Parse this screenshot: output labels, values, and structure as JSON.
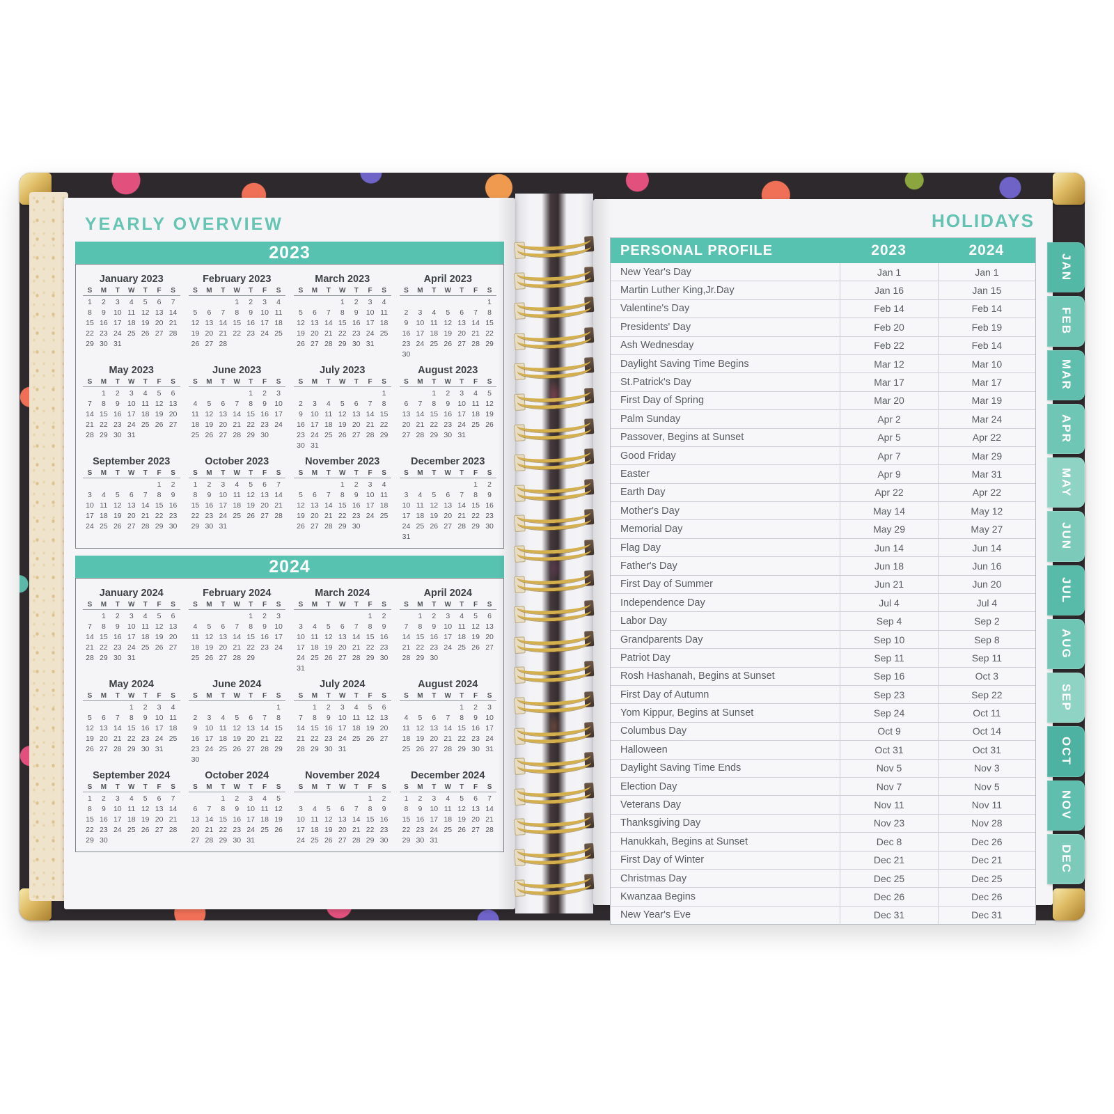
{
  "colors": {
    "teal": "#58C2B0",
    "teal_text": "#65C4B3",
    "gold": "#D4AF4E",
    "cover_dark": "#2E292C",
    "page": "#F5F5F8",
    "text": "#54585C",
    "table_border": "#CCD0D6"
  },
  "left_page": {
    "title": "YEARLY OVERVIEW",
    "weekday_letters": [
      "S",
      "M",
      "T",
      "W",
      "T",
      "F",
      "S"
    ],
    "years": [
      {
        "banner": "2023",
        "months": [
          {
            "label": "January 2023",
            "first_dow": 0,
            "days": 31
          },
          {
            "label": "February 2023",
            "first_dow": 3,
            "days": 28
          },
          {
            "label": "March 2023",
            "first_dow": 3,
            "days": 31
          },
          {
            "label": "April 2023",
            "first_dow": 6,
            "days": 30
          },
          {
            "label": "May 2023",
            "first_dow": 1,
            "days": 31
          },
          {
            "label": "June 2023",
            "first_dow": 4,
            "days": 30
          },
          {
            "label": "July 2023",
            "first_dow": 6,
            "days": 31
          },
          {
            "label": "August 2023",
            "first_dow": 2,
            "days": 31
          },
          {
            "label": "September 2023",
            "first_dow": 5,
            "days": 30
          },
          {
            "label": "October 2023",
            "first_dow": 0,
            "days": 31
          },
          {
            "label": "November 2023",
            "first_dow": 3,
            "days": 30
          },
          {
            "label": "December 2023",
            "first_dow": 5,
            "days": 31
          }
        ]
      },
      {
        "banner": "2024",
        "months": [
          {
            "label": "January 2024",
            "first_dow": 1,
            "days": 31
          },
          {
            "label": "February 2024",
            "first_dow": 4,
            "days": 29
          },
          {
            "label": "March 2024",
            "first_dow": 5,
            "days": 31
          },
          {
            "label": "April 2024",
            "first_dow": 1,
            "days": 30
          },
          {
            "label": "May 2024",
            "first_dow": 3,
            "days": 31
          },
          {
            "label": "June 2024",
            "first_dow": 6,
            "days": 30
          },
          {
            "label": "July 2024",
            "first_dow": 1,
            "days": 31
          },
          {
            "label": "August 2024",
            "first_dow": 4,
            "days": 31
          },
          {
            "label": "September 2024",
            "first_dow": 0,
            "days": 30
          },
          {
            "label": "October 2024",
            "first_dow": 2,
            "days": 31
          },
          {
            "label": "November 2024",
            "first_dow": 5,
            "days": 30
          },
          {
            "label": "December 2024",
            "first_dow": 0,
            "days": 31
          }
        ]
      }
    ]
  },
  "right_page": {
    "title": "HOLIDAYS",
    "table": {
      "header": {
        "name_col": "PERSONAL PROFILE",
        "col_2023": "2023",
        "col_2024": "2024"
      },
      "rows": [
        {
          "name": "New Year's Day",
          "y2023": "Jan 1",
          "y2024": "Jan 1"
        },
        {
          "name": "Martin Luther King,Jr.Day",
          "y2023": "Jan 16",
          "y2024": "Jan 15"
        },
        {
          "name": "Valentine's Day",
          "y2023": "Feb 14",
          "y2024": "Feb 14"
        },
        {
          "name": "Presidents' Day",
          "y2023": "Feb 20",
          "y2024": "Feb 19"
        },
        {
          "name": "Ash Wednesday",
          "y2023": "Feb 22",
          "y2024": "Feb 14"
        },
        {
          "name": "Daylight Saving Time Begins",
          "y2023": "Mar 12",
          "y2024": "Mar 10"
        },
        {
          "name": "St.Patrick's Day",
          "y2023": "Mar 17",
          "y2024": "Mar 17"
        },
        {
          "name": "First Day of Spring",
          "y2023": "Mar 20",
          "y2024": "Mar 19"
        },
        {
          "name": "Palm Sunday",
          "y2023": "Apr 2",
          "y2024": "Mar 24"
        },
        {
          "name": "Passover, Begins at Sunset",
          "y2023": "Apr 5",
          "y2024": "Apr 22"
        },
        {
          "name": "Good Friday",
          "y2023": "Apr 7",
          "y2024": "Mar 29"
        },
        {
          "name": "Easter",
          "y2023": "Apr 9",
          "y2024": "Mar 31"
        },
        {
          "name": "Earth Day",
          "y2023": "Apr 22",
          "y2024": "Apr 22"
        },
        {
          "name": "Mother's Day",
          "y2023": "May 14",
          "y2024": "May 12"
        },
        {
          "name": "Memorial Day",
          "y2023": "May 29",
          "y2024": "May 27"
        },
        {
          "name": "Flag Day",
          "y2023": "Jun 14",
          "y2024": "Jun 14"
        },
        {
          "name": "Father's Day",
          "y2023": "Jun 18",
          "y2024": "Jun 16"
        },
        {
          "name": "First Day of Summer",
          "y2023": "Jun 21",
          "y2024": "Jun 20"
        },
        {
          "name": "Independence Day",
          "y2023": "Jul 4",
          "y2024": "Jul 4"
        },
        {
          "name": "Labor Day",
          "y2023": "Sep 4",
          "y2024": "Sep 2"
        },
        {
          "name": "Grandparents Day",
          "y2023": "Sep 10",
          "y2024": "Sep 8"
        },
        {
          "name": "Patriot Day",
          "y2023": "Sep 11",
          "y2024": "Sep 11"
        },
        {
          "name": "Rosh Hashanah, Begins at Sunset",
          "y2023": "Sep 16",
          "y2024": "Oct 3"
        },
        {
          "name": "First Day of Autumn",
          "y2023": "Sep 23",
          "y2024": "Sep 22"
        },
        {
          "name": "Yom Kippur, Begins at Sunset",
          "y2023": "Sep 24",
          "y2024": "Oct 11"
        },
        {
          "name": "Columbus Day",
          "y2023": "Oct 9",
          "y2024": "Oct 14"
        },
        {
          "name": "Halloween",
          "y2023": "Oct 31",
          "y2024": "Oct 31"
        },
        {
          "name": "Daylight Saving Time Ends",
          "y2023": "Nov 5",
          "y2024": "Nov 3"
        },
        {
          "name": "Election Day",
          "y2023": "Nov 7",
          "y2024": "Nov 5"
        },
        {
          "name": "Veterans Day",
          "y2023": "Nov 11",
          "y2024": "Nov 11"
        },
        {
          "name": "Thanksgiving Day",
          "y2023": "Nov 23",
          "y2024": "Nov 28"
        },
        {
          "name": "Hanukkah, Begins at Sunset",
          "y2023": "Dec 8",
          "y2024": "Dec 26"
        },
        {
          "name": "First Day of Winter",
          "y2023": "Dec 21",
          "y2024": "Dec 21"
        },
        {
          "name": "Christmas Day",
          "y2023": "Dec 25",
          "y2024": "Dec 25"
        },
        {
          "name": "Kwanzaa Begins",
          "y2023": "Dec 26",
          "y2024": "Dec 26"
        },
        {
          "name": "New Year's Eve",
          "y2023": "Dec 31",
          "y2024": "Dec 31"
        }
      ]
    }
  },
  "tabs": [
    {
      "label": "JAN",
      "color": "#54B8A7"
    },
    {
      "label": "FEB",
      "color": "#6FC6B5"
    },
    {
      "label": "MAR",
      "color": "#5FBEAD"
    },
    {
      "label": "APR",
      "color": "#6FC6B5"
    },
    {
      "label": "MAY",
      "color": "#8FD3C4"
    },
    {
      "label": "JUN",
      "color": "#7CCBBA"
    },
    {
      "label": "JUL",
      "color": "#58BAA9"
    },
    {
      "label": "AUG",
      "color": "#6FC6B5"
    },
    {
      "label": "SEP",
      "color": "#8FD3C4"
    },
    {
      "label": "OCT",
      "color": "#4DB2A1"
    },
    {
      "label": "NOV",
      "color": "#5FBEAD"
    },
    {
      "label": "DEC",
      "color": "#7CCBBA"
    }
  ]
}
